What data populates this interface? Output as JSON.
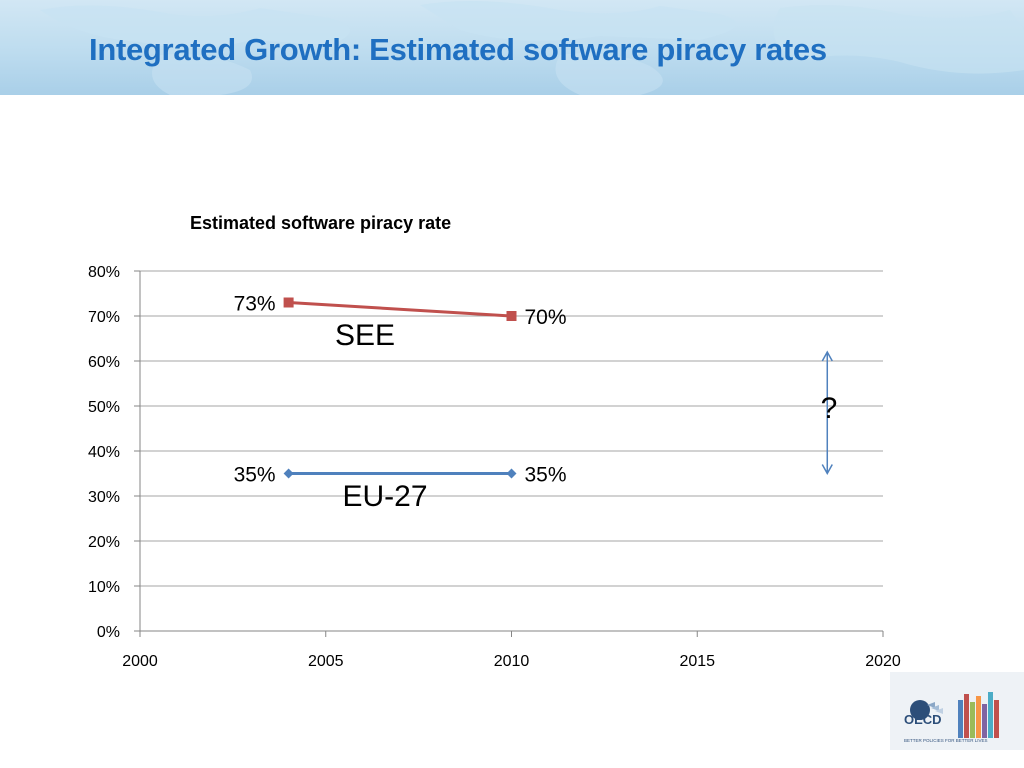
{
  "slide": {
    "title": "Integrated Growth: Estimated software piracy rates"
  },
  "logo": {
    "name": "OECD",
    "number": "50",
    "tagline": "BETTER POLICIES FOR BETTER LIVES"
  },
  "colors": {
    "header_bg": "#bddcef",
    "title": "#1f6fc1",
    "see_series": "#c0504d",
    "eu_series": "#4f81bd",
    "grid": "#a6a6a6"
  },
  "chart_data": {
    "type": "line",
    "title": "Estimated software piracy rate",
    "xlabel": "",
    "ylabel": "",
    "xlim": [
      2000,
      2020
    ],
    "ylim": [
      0,
      0.8
    ],
    "x_ticks": [
      "2000",
      "2005",
      "2010",
      "2015",
      "2020"
    ],
    "y_ticks": [
      "0%",
      "10%",
      "20%",
      "30%",
      "40%",
      "50%",
      "60%",
      "70%",
      "80%"
    ],
    "grid": true,
    "legend": "none",
    "series": [
      {
        "name": "SEE",
        "x": [
          2004,
          2010
        ],
        "y": [
          0.73,
          0.7
        ],
        "labels": [
          "73%",
          "70%"
        ],
        "marker": "square",
        "color": "#c0504d"
      },
      {
        "name": "EU-27",
        "x": [
          2004,
          2010
        ],
        "y": [
          0.35,
          0.35
        ],
        "labels": [
          "35%",
          "35%"
        ],
        "marker": "diamond",
        "color": "#4f81bd"
      }
    ],
    "annotations": [
      {
        "type": "double-arrow",
        "x": 2018.5,
        "y_range": [
          0.35,
          0.62
        ],
        "label": "?",
        "color": "#4f81bd"
      }
    ]
  }
}
